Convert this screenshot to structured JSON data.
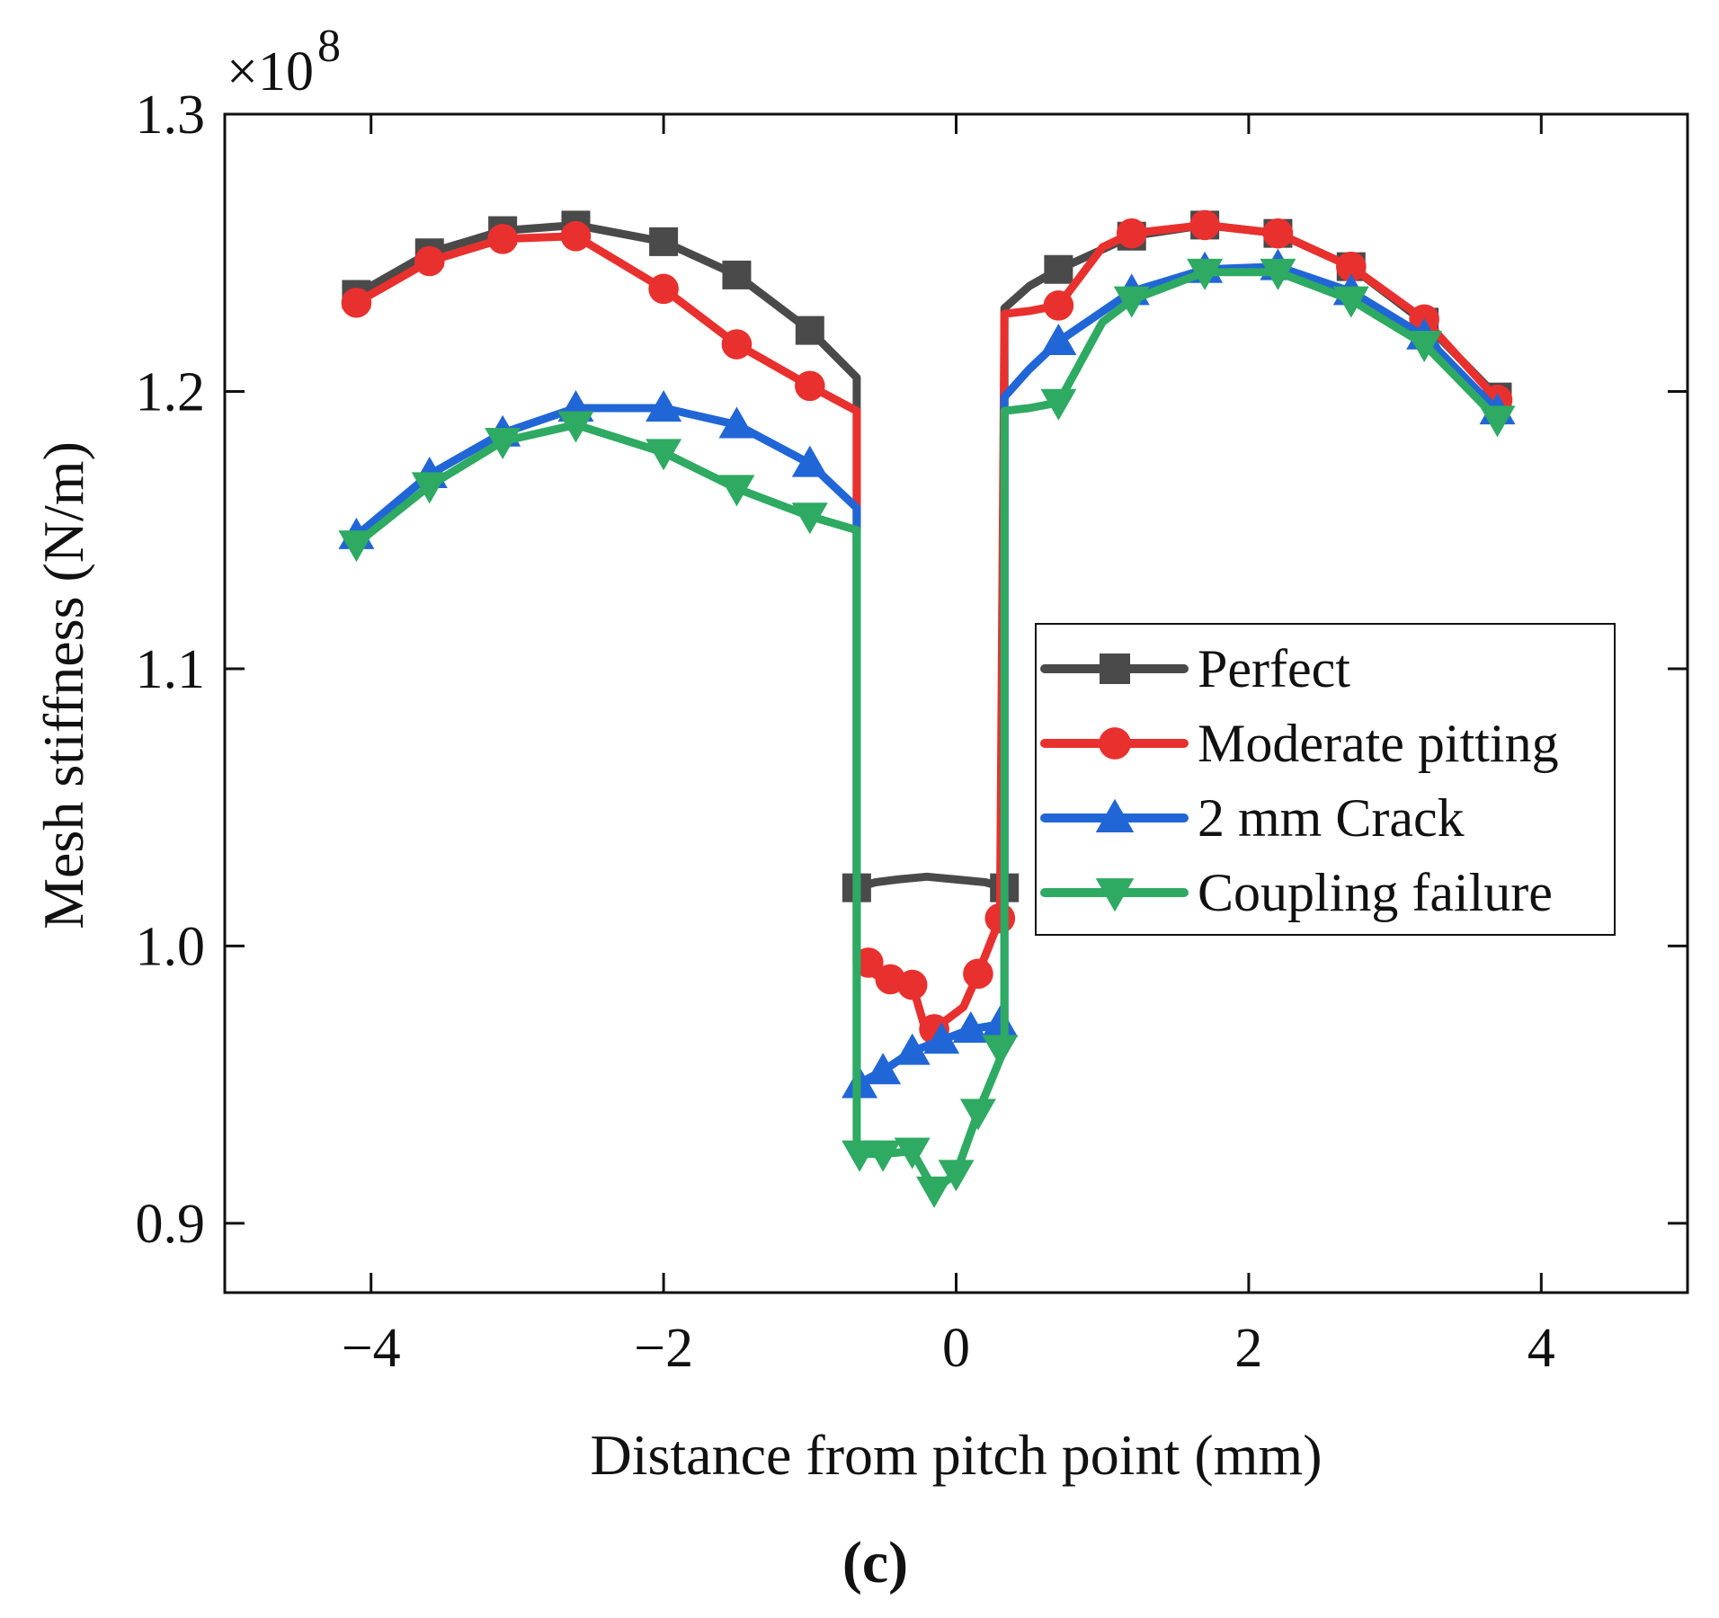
{
  "chart_data": {
    "type": "line",
    "title": "",
    "xlabel": "Distance from pitch point (mm)",
    "ylabel": "Mesh stiffness (N/m)",
    "y_multiplier_label": "×10",
    "y_multiplier_exponent": "8",
    "panel_label": "(c)",
    "xlim": [
      -5.0,
      5.0
    ],
    "ylim": [
      0.875,
      1.3
    ],
    "x_ticks": [
      -4,
      -2,
      0,
      2,
      4
    ],
    "x_tick_labels": [
      "−4",
      "−2",
      "0",
      "2",
      "4"
    ],
    "y_ticks": [
      0.9,
      1.0,
      1.1,
      1.2,
      1.3
    ],
    "y_tick_labels": [
      "0.9",
      "1.0",
      "1.1",
      "1.2",
      "1.3"
    ],
    "legend_position": "center-right",
    "series": [
      {
        "name": "Perfect",
        "color": "#4a4a4a",
        "marker": "square",
        "line": [
          [
            -4.1,
            1.235
          ],
          [
            -3.6,
            1.25
          ],
          [
            -3.1,
            1.258
          ],
          [
            -2.6,
            1.26
          ],
          [
            -2.0,
            1.254
          ],
          [
            -1.5,
            1.242
          ],
          [
            -1.0,
            1.222
          ],
          [
            -0.68,
            1.205
          ],
          [
            -0.68,
            1.021
          ],
          [
            -0.55,
            1.023
          ],
          [
            -0.4,
            1.024
          ],
          [
            -0.2,
            1.025
          ],
          [
            0.0,
            1.024
          ],
          [
            0.2,
            1.023
          ],
          [
            0.33,
            1.021
          ],
          [
            0.33,
            1.23
          ],
          [
            0.5,
            1.238
          ],
          [
            0.7,
            1.244
          ],
          [
            1.2,
            1.256
          ],
          [
            1.7,
            1.26
          ],
          [
            2.2,
            1.257
          ],
          [
            2.7,
            1.245
          ],
          [
            3.2,
            1.225
          ],
          [
            3.7,
            1.198
          ]
        ],
        "markers": [
          [
            -4.1,
            1.235
          ],
          [
            -3.6,
            1.25
          ],
          [
            -3.1,
            1.258
          ],
          [
            -2.6,
            1.26
          ],
          [
            -2.0,
            1.254
          ],
          [
            -1.5,
            1.242
          ],
          [
            -1.0,
            1.222
          ],
          [
            -0.68,
            1.021
          ],
          [
            0.33,
            1.021
          ],
          [
            0.7,
            1.244
          ],
          [
            1.2,
            1.256
          ],
          [
            1.7,
            1.26
          ],
          [
            2.2,
            1.257
          ],
          [
            2.7,
            1.245
          ],
          [
            3.2,
            1.225
          ],
          [
            3.7,
            1.198
          ]
        ]
      },
      {
        "name": "Moderate pitting",
        "color": "#e8312e",
        "marker": "circle",
        "line": [
          [
            -4.1,
            1.232
          ],
          [
            -3.6,
            1.247
          ],
          [
            -3.1,
            1.255
          ],
          [
            -2.6,
            1.256
          ],
          [
            -2.0,
            1.237
          ],
          [
            -1.5,
            1.217
          ],
          [
            -1.0,
            1.202
          ],
          [
            -0.68,
            1.193
          ],
          [
            -0.68,
            0.994
          ],
          [
            -0.5,
            0.988
          ],
          [
            -0.3,
            0.986
          ],
          [
            -0.2,
            0.968
          ],
          [
            -0.1,
            0.972
          ],
          [
            0.05,
            0.978
          ],
          [
            0.15,
            0.99
          ],
          [
            0.3,
            1.01
          ],
          [
            0.33,
            1.228
          ],
          [
            0.5,
            1.229
          ],
          [
            0.7,
            1.231
          ],
          [
            1.0,
            1.252
          ],
          [
            1.2,
            1.257
          ],
          [
            1.7,
            1.26
          ],
          [
            2.2,
            1.257
          ],
          [
            2.7,
            1.245
          ],
          [
            3.2,
            1.226
          ],
          [
            3.7,
            1.197
          ]
        ],
        "markers": [
          [
            -4.1,
            1.232
          ],
          [
            -3.6,
            1.247
          ],
          [
            -3.1,
            1.255
          ],
          [
            -2.6,
            1.256
          ],
          [
            -2.0,
            1.237
          ],
          [
            -1.5,
            1.217
          ],
          [
            -1.0,
            1.202
          ],
          [
            -0.6,
            0.994
          ],
          [
            -0.45,
            0.988
          ],
          [
            -0.3,
            0.986
          ],
          [
            -0.15,
            0.97
          ],
          [
            0.15,
            0.99
          ],
          [
            0.3,
            1.01
          ],
          [
            0.7,
            1.231
          ],
          [
            1.2,
            1.257
          ],
          [
            1.7,
            1.26
          ],
          [
            2.2,
            1.257
          ],
          [
            2.7,
            1.245
          ],
          [
            3.2,
            1.226
          ],
          [
            3.7,
            1.197
          ]
        ]
      },
      {
        "name": "2 mm Crack",
        "color": "#2166d6",
        "marker": "triangle-up",
        "line": [
          [
            -4.1,
            1.148
          ],
          [
            -3.6,
            1.17
          ],
          [
            -3.1,
            1.185
          ],
          [
            -2.6,
            1.194
          ],
          [
            -2.0,
            1.194
          ],
          [
            -1.5,
            1.188
          ],
          [
            -1.0,
            1.174
          ],
          [
            -0.68,
            1.158
          ],
          [
            -0.68,
            0.95
          ],
          [
            -0.5,
            0.955
          ],
          [
            -0.3,
            0.962
          ],
          [
            -0.1,
            0.966
          ],
          [
            0.1,
            0.97
          ],
          [
            0.33,
            0.972
          ],
          [
            0.33,
            1.198
          ],
          [
            0.5,
            1.208
          ],
          [
            0.7,
            1.218
          ],
          [
            1.2,
            1.236
          ],
          [
            1.7,
            1.244
          ],
          [
            2.2,
            1.245
          ],
          [
            2.7,
            1.236
          ],
          [
            3.2,
            1.22
          ],
          [
            3.7,
            1.193
          ]
        ],
        "markers": [
          [
            -4.1,
            1.148
          ],
          [
            -3.6,
            1.17
          ],
          [
            -3.1,
            1.185
          ],
          [
            -2.6,
            1.194
          ],
          [
            -2.0,
            1.194
          ],
          [
            -1.5,
            1.188
          ],
          [
            -1.0,
            1.174
          ],
          [
            -0.66,
            0.95
          ],
          [
            -0.5,
            0.955
          ],
          [
            -0.3,
            0.962
          ],
          [
            -0.1,
            0.966
          ],
          [
            0.1,
            0.97
          ],
          [
            0.3,
            0.972
          ],
          [
            0.7,
            1.218
          ],
          [
            1.2,
            1.236
          ],
          [
            1.7,
            1.244
          ],
          [
            2.2,
            1.245
          ],
          [
            2.7,
            1.236
          ],
          [
            3.2,
            1.22
          ],
          [
            3.7,
            1.193
          ]
        ]
      },
      {
        "name": "Coupling failure",
        "color": "#2eaa62",
        "marker": "triangle-down",
        "line": [
          [
            -4.1,
            1.145
          ],
          [
            -3.6,
            1.166
          ],
          [
            -3.1,
            1.182
          ],
          [
            -2.6,
            1.188
          ],
          [
            -2.0,
            1.178
          ],
          [
            -1.5,
            1.165
          ],
          [
            -1.0,
            1.155
          ],
          [
            -0.68,
            1.15
          ],
          [
            -0.68,
            0.925
          ],
          [
            -0.5,
            0.925
          ],
          [
            -0.3,
            0.926
          ],
          [
            -0.15,
            0.912
          ],
          [
            0.0,
            0.918
          ],
          [
            0.15,
            0.94
          ],
          [
            0.33,
            0.963
          ],
          [
            0.33,
            1.193
          ],
          [
            0.5,
            1.194
          ],
          [
            0.7,
            1.196
          ],
          [
            1.0,
            1.225
          ],
          [
            1.2,
            1.233
          ],
          [
            1.7,
            1.243
          ],
          [
            2.2,
            1.243
          ],
          [
            2.7,
            1.233
          ],
          [
            3.2,
            1.217
          ],
          [
            3.7,
            1.19
          ]
        ],
        "markers": [
          [
            -4.1,
            1.145
          ],
          [
            -3.6,
            1.166
          ],
          [
            -3.1,
            1.182
          ],
          [
            -2.6,
            1.188
          ],
          [
            -2.0,
            1.178
          ],
          [
            -1.5,
            1.165
          ],
          [
            -1.0,
            1.155
          ],
          [
            -0.66,
            0.925
          ],
          [
            -0.5,
            0.925
          ],
          [
            -0.3,
            0.926
          ],
          [
            -0.15,
            0.912
          ],
          [
            0.0,
            0.918
          ],
          [
            0.15,
            0.94
          ],
          [
            0.3,
            0.963
          ],
          [
            0.7,
            1.196
          ],
          [
            1.2,
            1.233
          ],
          [
            1.7,
            1.243
          ],
          [
            2.2,
            1.243
          ],
          [
            2.7,
            1.233
          ],
          [
            3.2,
            1.217
          ],
          [
            3.7,
            1.19
          ]
        ]
      }
    ]
  }
}
